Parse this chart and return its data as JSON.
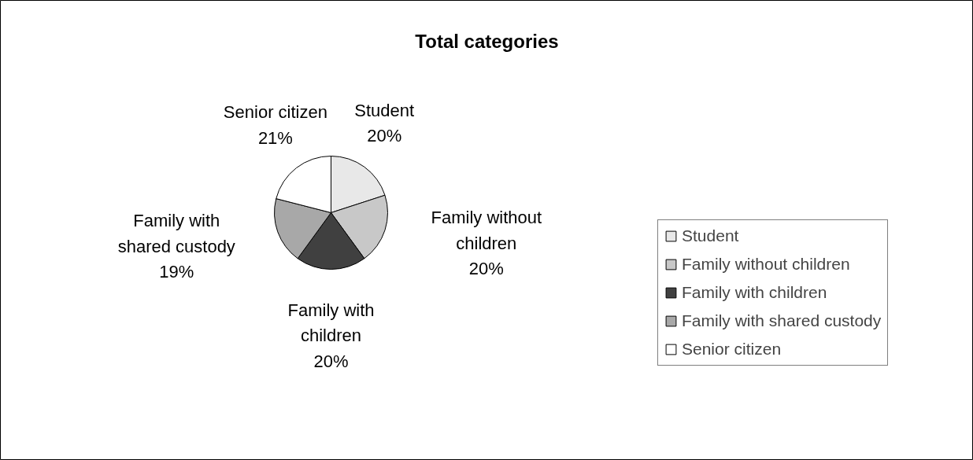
{
  "chart_data": {
    "type": "pie",
    "title": "Total categories",
    "categories": [
      "Student",
      "Family without children",
      "Family with children",
      "Family with shared custody",
      "Senior citizen"
    ],
    "values": [
      20,
      20,
      20,
      19,
      21
    ],
    "value_labels": [
      "20%",
      "20%",
      "20%",
      "19%",
      "21%"
    ],
    "colors": [
      "#e8e8e8",
      "#c8c8c8",
      "#404040",
      "#a8a8a8",
      "#ffffff"
    ],
    "legend": "right"
  }
}
